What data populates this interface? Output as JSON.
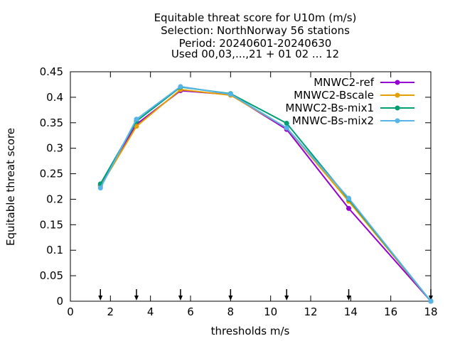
{
  "chart_data": {
    "type": "line",
    "title_lines": [
      "Equitable threat score  for U10m (m/s)",
      "Selection: NorthNorway     56 stations",
      "Period: 20240601-20240630",
      "Used 00,03,...,21 + 01 02 ... 12"
    ],
    "xlabel": "thresholds m/s",
    "ylabel": "Equitable threat score",
    "xlim": [
      0,
      18
    ],
    "ylim": [
      0,
      0.45
    ],
    "xticks": [
      0,
      2,
      4,
      6,
      8,
      10,
      12,
      14,
      16,
      18
    ],
    "xtick_labels": [
      "0",
      "2",
      "4",
      "6",
      "8",
      "10",
      "12",
      "14",
      "16",
      "18"
    ],
    "yticks": [
      0,
      0.05,
      0.1,
      0.15,
      0.2,
      0.25,
      0.3,
      0.35,
      0.4,
      0.45
    ],
    "ytick_labels": [
      "0",
      "0.05",
      "0.1",
      "0.15",
      "0.2",
      "0.25",
      "0.3",
      "0.35",
      "0.4",
      "0.45"
    ],
    "x": [
      1.5,
      3.3,
      5.5,
      8.0,
      10.8,
      13.9,
      18.0
    ],
    "threshold_arrows_x": [
      1.5,
      3.3,
      5.5,
      8.0,
      10.8,
      13.9,
      18.0
    ],
    "legend_position": "top-right",
    "grid": false,
    "series": [
      {
        "name": "MNWC2-ref",
        "color": "#9400d3",
        "values": [
          0.227,
          0.347,
          0.413,
          0.405,
          0.337,
          0.182,
          0.0
        ]
      },
      {
        "name": "MNWC2-Bscale",
        "color": "#e69f00",
        "values": [
          0.225,
          0.343,
          0.415,
          0.404,
          0.34,
          0.196,
          0.0
        ]
      },
      {
        "name": "MNWC2-Bs-mix1",
        "color": "#009e73",
        "values": [
          0.23,
          0.353,
          0.42,
          0.407,
          0.349,
          0.2,
          0.0
        ]
      },
      {
        "name": "MNWC-Bs-mix2",
        "color": "#56b4e9",
        "values": [
          0.222,
          0.357,
          0.421,
          0.406,
          0.34,
          0.202,
          0.0
        ]
      }
    ]
  }
}
